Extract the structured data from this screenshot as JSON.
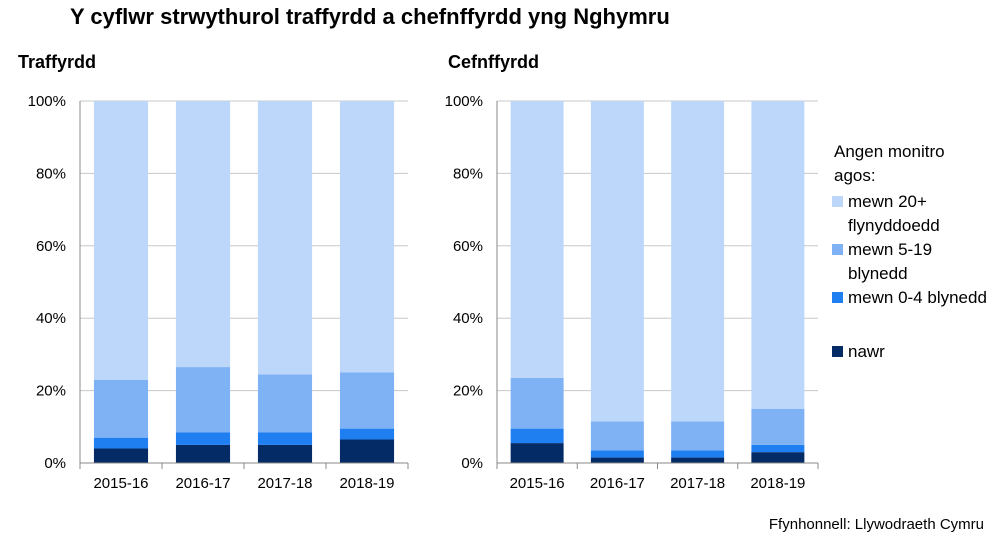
{
  "title": "Y cyflwr strwythurol traffyrdd a chefnffyrdd yng Nghymru",
  "source": "Ffynhonnell: Llywodraeth Cymru",
  "legend": {
    "heading": "Angen monitro agos:",
    "items": [
      {
        "label": "mewn 20+ flynyddoedd",
        "color": "#bdd7fb"
      },
      {
        "label": "mewn 5-19 blynedd",
        "color": "#7fb1f5"
      },
      {
        "label": "mewn 0-4 blynedd",
        "color": "#1f7ef0"
      },
      {
        "label": "nawr",
        "color": "#052b66"
      }
    ]
  },
  "chart_data": [
    {
      "type": "bar",
      "stacked": true,
      "title": "Traffyrdd",
      "categories": [
        "2015-16",
        "2016-17",
        "2017-18",
        "2018-19"
      ],
      "ylim": [
        0,
        100
      ],
      "yticks": [
        "0%",
        "20%",
        "40%",
        "60%",
        "80%",
        "100%"
      ],
      "grid": true,
      "series": [
        {
          "name": "nawr",
          "values": [
            4,
            5,
            5,
            6.5
          ]
        },
        {
          "name": "mewn 0-4 blynedd",
          "values": [
            3,
            3.5,
            3.5,
            3
          ]
        },
        {
          "name": "mewn 5-19 blynedd",
          "values": [
            16,
            18,
            16,
            15.5
          ]
        },
        {
          "name": "mewn 20+ flynyddoedd",
          "values": [
            77,
            73.5,
            75.5,
            75
          ]
        }
      ]
    },
    {
      "type": "bar",
      "stacked": true,
      "title": "Cefnffyrdd",
      "categories": [
        "2015-16",
        "2016-17",
        "2017-18",
        "2018-19"
      ],
      "ylim": [
        0,
        100
      ],
      "yticks": [
        "0%",
        "20%",
        "40%",
        "60%",
        "80%",
        "100%"
      ],
      "grid": true,
      "series": [
        {
          "name": "nawr",
          "values": [
            5.5,
            1.5,
            1.5,
            3
          ]
        },
        {
          "name": "mewn 0-4 blynedd",
          "values": [
            4,
            2,
            2,
            2
          ]
        },
        {
          "name": "mewn 5-19 blynedd",
          "values": [
            14,
            8,
            8,
            10
          ]
        },
        {
          "name": "mewn 20+ flynyddoedd",
          "values": [
            76.5,
            88.5,
            88.5,
            85
          ]
        }
      ]
    }
  ]
}
